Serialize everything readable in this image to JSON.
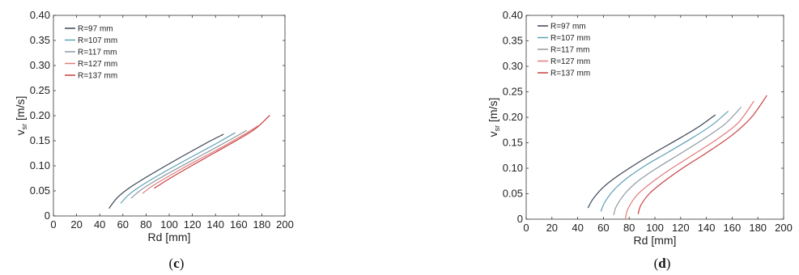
{
  "chart_data": [
    {
      "panel": "c",
      "caption": {
        "open": "(",
        "letter": "c",
        "close": ")"
      },
      "type": "line",
      "xlabel": "Rd [mm]",
      "ylabel_main": "v",
      "ylabel_sub": "sr",
      "ylabel_unit": " [m/s]",
      "xlim": [
        0,
        200
      ],
      "ylim": [
        0,
        0.4
      ],
      "xticks": [
        "0",
        "20",
        "40",
        "60",
        "80",
        "100",
        "120",
        "140",
        "160",
        "180",
        "200"
      ],
      "yticks": [
        "0",
        "0.05",
        "0.10",
        "0.15",
        "0.20",
        "0.25",
        "0.30",
        "0.35",
        "0.40"
      ],
      "legend_position": "top-left",
      "series": [
        {
          "name": "R=97 mm",
          "color": "#3a4656",
          "x": [
            48,
            55,
            65,
            80,
            100,
            120,
            135,
            147
          ],
          "y": [
            0.015,
            0.036,
            0.055,
            0.077,
            0.104,
            0.13,
            0.149,
            0.163
          ]
        },
        {
          "name": "R=107 mm",
          "color": "#5fa0b6",
          "x": [
            58,
            65,
            75,
            90,
            110,
            130,
            145,
            157
          ],
          "y": [
            0.025,
            0.042,
            0.059,
            0.08,
            0.106,
            0.131,
            0.15,
            0.166
          ]
        },
        {
          "name": "R=117 mm",
          "color": "#8f9aa2",
          "x": [
            67,
            75,
            85,
            100,
            120,
            140,
            155,
            167
          ],
          "y": [
            0.035,
            0.051,
            0.066,
            0.086,
            0.111,
            0.136,
            0.155,
            0.171
          ]
        },
        {
          "name": "R=127 mm",
          "color": "#e27b7b",
          "x": [
            77,
            85,
            95,
            110,
            130,
            150,
            165,
            177
          ],
          "y": [
            0.045,
            0.059,
            0.073,
            0.093,
            0.118,
            0.143,
            0.163,
            0.18
          ]
        },
        {
          "name": "R=137 mm",
          "color": "#c93f3f",
          "x": [
            87,
            95,
            105,
            120,
            140,
            160,
            175,
            187
          ],
          "y": [
            0.055,
            0.067,
            0.081,
            0.101,
            0.127,
            0.153,
            0.175,
            0.201
          ]
        }
      ]
    },
    {
      "panel": "d",
      "caption": {
        "open": "(",
        "letter": "d",
        "close": ")"
      },
      "type": "line",
      "xlabel": "Rd [mm]",
      "ylabel_main": "v",
      "ylabel_sub": "sr",
      "ylabel_unit": " [m/s]",
      "xlim": [
        0,
        200
      ],
      "ylim": [
        0,
        0.4
      ],
      "xticks": [
        "0",
        "20",
        "40",
        "60",
        "80",
        "100",
        "120",
        "140",
        "160",
        "180",
        "200"
      ],
      "yticks": [
        "0",
        "0.05",
        "0.10",
        "0.15",
        "0.20",
        "0.25",
        "0.30",
        "0.35",
        "0.40"
      ],
      "legend_position": "top-left",
      "series": [
        {
          "name": "R=97 mm",
          "color": "#3a4656",
          "x": [
            48,
            52,
            60,
            70,
            85,
            100,
            120,
            135,
            147
          ],
          "y": [
            0.022,
            0.04,
            0.063,
            0.083,
            0.108,
            0.131,
            0.16,
            0.183,
            0.205
          ]
        },
        {
          "name": "R=107 mm",
          "color": "#5fa0b6",
          "x": [
            58,
            61,
            68,
            78,
            93,
            110,
            130,
            145,
            157
          ],
          "y": [
            0.015,
            0.033,
            0.057,
            0.08,
            0.106,
            0.131,
            0.161,
            0.186,
            0.212
          ]
        },
        {
          "name": "R=117 mm",
          "color": "#8f9aa2",
          "x": [
            68,
            70,
            77,
            87,
            102,
            120,
            140,
            155,
            167
          ],
          "y": [
            0.008,
            0.025,
            0.051,
            0.075,
            0.101,
            0.129,
            0.161,
            0.188,
            0.22
          ]
        },
        {
          "name": "R=127 mm",
          "color": "#e27b7b",
          "x": [
            77,
            79,
            86,
            97,
            112,
            130,
            150,
            165,
            177
          ],
          "y": [
            0.0,
            0.02,
            0.047,
            0.071,
            0.098,
            0.127,
            0.16,
            0.19,
            0.232
          ]
        },
        {
          "name": "R=137 mm",
          "color": "#c93f3f",
          "x": [
            87,
            89,
            96,
            107,
            122,
            140,
            160,
            175,
            187
          ],
          "y": [
            0.01,
            0.027,
            0.051,
            0.074,
            0.101,
            0.13,
            0.165,
            0.2,
            0.243
          ]
        }
      ]
    }
  ]
}
